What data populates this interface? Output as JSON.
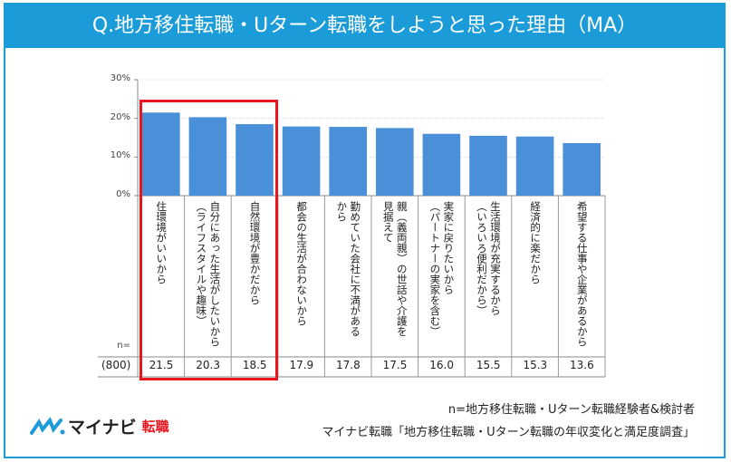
{
  "title": "Q.地方移住転職・Uターン転職をしようと思った理由（MA）",
  "chart_data": {
    "type": "bar",
    "title": "Q.地方移住転職・Uターン転職をしようと思った理由（MA）",
    "categories": [
      "住環境がいいから",
      "自分にあった生活がしたいから\n（ライフスタイルや趣味）",
      "自然環境が豊かだから",
      "都会の生活が合わないから",
      "勤めていた会社に不満がある\nから",
      "親（義両親）の世話や介護を\n見据えて",
      "実家に戻りたいから\n（パートナーの実家を含む）",
      "生活環境が充実するから\n（いろいろ便利だから）",
      "経済的に楽だから",
      "希望する仕事や企業があるから"
    ],
    "values": [
      21.5,
      20.3,
      18.5,
      17.9,
      17.8,
      17.5,
      16.0,
      15.5,
      15.3,
      13.6
    ],
    "value_labels": [
      "21.5",
      "20.3",
      "18.5",
      "17.9",
      "17.8",
      "17.5",
      "16.0",
      "15.5",
      "15.3",
      "13.6"
    ],
    "yticks": [
      "0%",
      "10%",
      "20%",
      "30%"
    ],
    "ylim": [
      0,
      30
    ],
    "n_label": "n=",
    "n_value": "(800)",
    "highlighted_categories": [
      0,
      1,
      2
    ],
    "bar_color": "#4a90d9",
    "highlight_color": "#e8141e"
  },
  "footer": {
    "note1": "n=地方移住転職・Uターン転職経験者&検討者",
    "note2": "マイナビ転職「地方移住転職・Uターン転職の年収変化と満足度調査」"
  },
  "logo": {
    "text": "マイナビ",
    "sub": "転職"
  }
}
